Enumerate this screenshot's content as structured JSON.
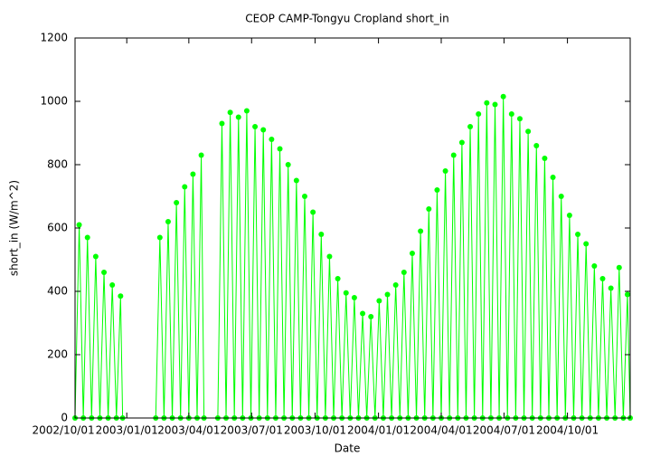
{
  "chart_data": {
    "type": "line",
    "title": "CEOP  CAMP-Tongyu Cropland  short_in",
    "x_label": "Date",
    "y_label": "short_in (W/m^2)",
    "color": "#00ff00",
    "x": [
      "2002/10/18",
      "2002/10/24",
      "2002/10/30",
      "2002/11/05",
      "2002/11/11",
      "2002/11/17",
      "2002/11/23",
      "2002/11/29",
      "2002/12/05",
      "2002/12/11",
      "2002/12/17",
      "2002/12/23",
      "2002/12/26",
      "2003/01/15",
      "2003/02/12",
      "2003/02/18",
      "2003/02/24",
      "2003/03/02",
      "2003/03/08",
      "2003/03/14",
      "2003/03/20",
      "2003/03/26",
      "2003/04/01",
      "2003/04/07",
      "2003/04/13",
      "2003/04/19",
      "2003/04/23",
      "2003/05/01",
      "2003/05/13",
      "2003/05/19",
      "2003/05/25",
      "2003/05/31",
      "2003/06/06",
      "2003/06/12",
      "2003/06/18",
      "2003/06/24",
      "2003/06/30",
      "2003/07/06",
      "2003/07/12",
      "2003/07/18",
      "2003/07/24",
      "2003/07/30",
      "2003/08/05",
      "2003/08/11",
      "2003/08/17",
      "2003/08/23",
      "2003/08/29",
      "2003/09/04",
      "2003/09/10",
      "2003/09/16",
      "2003/09/22",
      "2003/09/28",
      "2003/10/04",
      "2003/10/10",
      "2003/10/16",
      "2003/10/22",
      "2003/10/28",
      "2003/11/03",
      "2003/11/09",
      "2003/11/15",
      "2003/11/21",
      "2003/11/27",
      "2003/12/03",
      "2003/12/09",
      "2003/12/15",
      "2003/12/21",
      "2003/12/27",
      "2004/01/02",
      "2004/01/08",
      "2004/01/14",
      "2004/01/20",
      "2004/01/26",
      "2004/02/01",
      "2004/02/07",
      "2004/02/13",
      "2004/02/19",
      "2004/02/25",
      "2004/03/02",
      "2004/03/08",
      "2004/03/14",
      "2004/03/20",
      "2004/03/26",
      "2004/04/01",
      "2004/04/07",
      "2004/04/13",
      "2004/04/19",
      "2004/04/25",
      "2004/05/01",
      "2004/05/07",
      "2004/05/13",
      "2004/05/19",
      "2004/05/25",
      "2004/05/31",
      "2004/06/06",
      "2004/06/12",
      "2004/06/18",
      "2004/06/24",
      "2004/06/30",
      "2004/07/06",
      "2004/07/12",
      "2004/07/18",
      "2004/07/24",
      "2004/07/30",
      "2004/08/05",
      "2004/08/11",
      "2004/08/17",
      "2004/08/23",
      "2004/08/29",
      "2004/09/04",
      "2004/09/10",
      "2004/09/16",
      "2004/09/22",
      "2004/09/28",
      "2004/10/04",
      "2004/10/10",
      "2004/10/16",
      "2004/10/22",
      "2004/10/28",
      "2004/11/03",
      "2004/11/09",
      "2004/11/15",
      "2004/11/21",
      "2004/11/27",
      "2004/12/03",
      "2004/12/09",
      "2004/12/15",
      "2004/12/21",
      "2004/12/27",
      "2004/12/31"
    ],
    "values": [
      0,
      610,
      0,
      570,
      0,
      510,
      0,
      460,
      0,
      420,
      0,
      385,
      0,
      null,
      0,
      570,
      0,
      620,
      0,
      680,
      0,
      730,
      0,
      770,
      0,
      830,
      0,
      null,
      0,
      930,
      0,
      965,
      0,
      950,
      0,
      970,
      0,
      920,
      0,
      910,
      0,
      880,
      0,
      850,
      0,
      800,
      0,
      750,
      0,
      700,
      0,
      650,
      0,
      580,
      0,
      510,
      0,
      440,
      0,
      395,
      0,
      380,
      0,
      330,
      0,
      320,
      0,
      370,
      0,
      390,
      0,
      420,
      0,
      460,
      0,
      520,
      0,
      590,
      0,
      660,
      0,
      720,
      0,
      780,
      0,
      830,
      0,
      870,
      0,
      920,
      0,
      960,
      0,
      995,
      0,
      990,
      0,
      1015,
      0,
      960,
      0,
      945,
      0,
      905,
      0,
      860,
      0,
      820,
      0,
      760,
      0,
      700,
      0,
      640,
      0,
      580,
      0,
      550,
      0,
      480,
      0,
      440,
      0,
      410,
      0,
      475,
      0,
      390,
      0
    ],
    "xlim": [
      "2002/10/18",
      "2004/12/31"
    ],
    "xticks": [
      "2002/10/01",
      "2003/01/01",
      "2003/04/01",
      "2003/07/01",
      "2003/10/01",
      "2004/01/01",
      "2004/04/01",
      "2004/07/01",
      "2004/10/01"
    ],
    "ylim": [
      0,
      1200
    ],
    "yticks": [
      0,
      200,
      400,
      600,
      800,
      1000,
      1200
    ]
  }
}
